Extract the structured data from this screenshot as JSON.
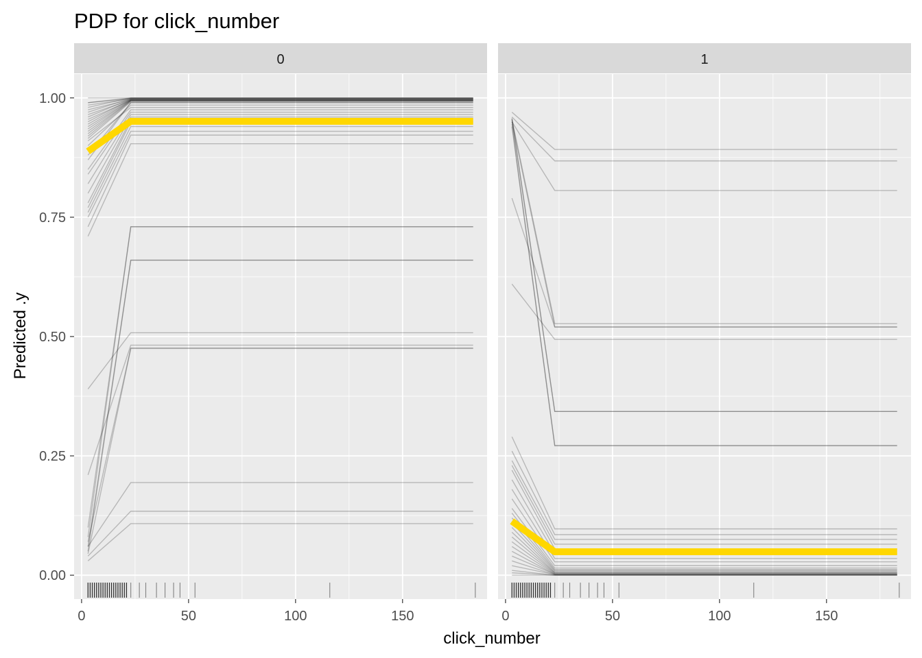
{
  "chart_data": {
    "type": "line",
    "title": "PDP for click_number",
    "xlabel": "click_number",
    "ylabel": "Predicted .y",
    "xlim": [
      -3.5,
      189.5
    ],
    "ylim": [
      -0.05,
      1.05
    ],
    "x_ticks": [
      0,
      50,
      100,
      150
    ],
    "y_ticks": [
      0.0,
      0.25,
      0.5,
      0.75,
      1.0
    ],
    "y_tick_labels": [
      "0.00",
      "0.25",
      "0.50",
      "0.75",
      "1.00"
    ],
    "grid": true,
    "x_grid_points": [
      3,
      23,
      183
    ],
    "pdp_color": "#FFD700",
    "ice_color": "#000000",
    "panel_bg": "#EBEBEB",
    "strip_bg": "#D9D9D9",
    "rug": [
      3,
      4,
      5,
      6,
      7,
      8,
      9,
      10,
      11,
      12,
      13,
      14,
      15,
      16,
      17,
      18,
      19,
      20,
      21,
      23,
      27,
      30,
      35,
      39,
      43,
      46,
      53,
      116,
      184
    ],
    "panels": [
      {
        "strip": "0",
        "pdp": [
          0.888,
          0.951,
          0.951
        ],
        "ice": [
          [
            1.0,
            1.0,
            1.0
          ],
          [
            0.99,
            1.0,
            1.0
          ],
          [
            0.98,
            1.0,
            1.0
          ],
          [
            0.97,
            0.999,
            0.999
          ],
          [
            0.96,
            0.998,
            0.998
          ],
          [
            0.95,
            0.997,
            0.997
          ],
          [
            0.945,
            0.996,
            0.996
          ],
          [
            0.94,
            0.995,
            0.995
          ],
          [
            0.935,
            0.995,
            0.995
          ],
          [
            0.93,
            0.994,
            0.994
          ],
          [
            0.92,
            0.993,
            0.993
          ],
          [
            0.99,
            0.999,
            0.999
          ],
          [
            0.985,
            0.998,
            0.998
          ],
          [
            0.975,
            0.997,
            0.997
          ],
          [
            0.965,
            0.996,
            0.996
          ],
          [
            0.955,
            0.995,
            0.995
          ],
          [
            0.925,
            0.994,
            0.994
          ],
          [
            0.915,
            0.992,
            0.992
          ],
          [
            0.87,
            0.99,
            0.99
          ],
          [
            0.88,
            0.99,
            0.99
          ],
          [
            0.9,
            0.985,
            0.985
          ],
          [
            0.91,
            0.98,
            0.98
          ],
          [
            0.85,
            0.975,
            0.975
          ],
          [
            0.84,
            0.97,
            0.97
          ],
          [
            0.82,
            0.965,
            0.965
          ],
          [
            0.8,
            0.96,
            0.96
          ],
          [
            0.78,
            0.955,
            0.955
          ],
          [
            0.77,
            0.95,
            0.95
          ],
          [
            0.76,
            0.94,
            0.94
          ],
          [
            0.75,
            0.93,
            0.93
          ],
          [
            0.73,
            0.922,
            0.922
          ],
          [
            0.71,
            0.904,
            0.904
          ],
          [
            0.1,
            0.73,
            0.73
          ],
          [
            0.08,
            0.73,
            0.73
          ],
          [
            0.06,
            0.66,
            0.66
          ],
          [
            0.05,
            0.66,
            0.66
          ],
          [
            0.39,
            0.508,
            0.508
          ],
          [
            0.21,
            0.482,
            0.482
          ],
          [
            0.07,
            0.476,
            0.476
          ],
          [
            0.045,
            0.475,
            0.475
          ],
          [
            0.06,
            0.194,
            0.194
          ],
          [
            0.04,
            0.134,
            0.134
          ],
          [
            0.03,
            0.108,
            0.108
          ]
        ]
      },
      {
        "strip": "1",
        "pdp": [
          0.113,
          0.049,
          0.049
        ],
        "ice": [
          [
            0.97,
            0.892,
            0.892
          ],
          [
            0.96,
            0.868,
            0.868
          ],
          [
            0.95,
            0.806,
            0.806
          ],
          [
            0.955,
            0.527,
            0.527
          ],
          [
            0.95,
            0.52,
            0.52
          ],
          [
            0.79,
            0.52,
            0.52
          ],
          [
            0.61,
            0.494,
            0.494
          ],
          [
            0.958,
            0.343,
            0.343
          ],
          [
            0.955,
            0.343,
            0.343
          ],
          [
            0.945,
            0.272,
            0.272
          ],
          [
            0.94,
            0.271,
            0.271
          ],
          [
            0.29,
            0.097,
            0.097
          ],
          [
            0.26,
            0.085,
            0.085
          ],
          [
            0.24,
            0.075,
            0.075
          ],
          [
            0.23,
            0.065,
            0.065
          ],
          [
            0.22,
            0.055,
            0.055
          ],
          [
            0.2,
            0.045,
            0.045
          ],
          [
            0.18,
            0.035,
            0.035
          ],
          [
            0.16,
            0.028,
            0.028
          ],
          [
            0.14,
            0.02,
            0.02
          ],
          [
            0.13,
            0.015,
            0.015
          ],
          [
            0.12,
            0.012,
            0.012
          ],
          [
            0.11,
            0.01,
            0.01
          ],
          [
            0.1,
            0.008,
            0.008
          ],
          [
            0.09,
            0.006,
            0.006
          ],
          [
            0.08,
            0.005,
            0.005
          ],
          [
            0.07,
            0.004,
            0.004
          ],
          [
            0.06,
            0.003,
            0.003
          ],
          [
            0.05,
            0.002,
            0.002
          ],
          [
            0.04,
            0.002,
            0.002
          ],
          [
            0.03,
            0.001,
            0.001
          ],
          [
            0.02,
            0.001,
            0.001
          ],
          [
            0.01,
            0.0,
            0.0
          ],
          [
            0.005,
            0.0,
            0.0
          ],
          [
            0.0,
            0.0,
            0.0
          ]
        ]
      }
    ]
  }
}
